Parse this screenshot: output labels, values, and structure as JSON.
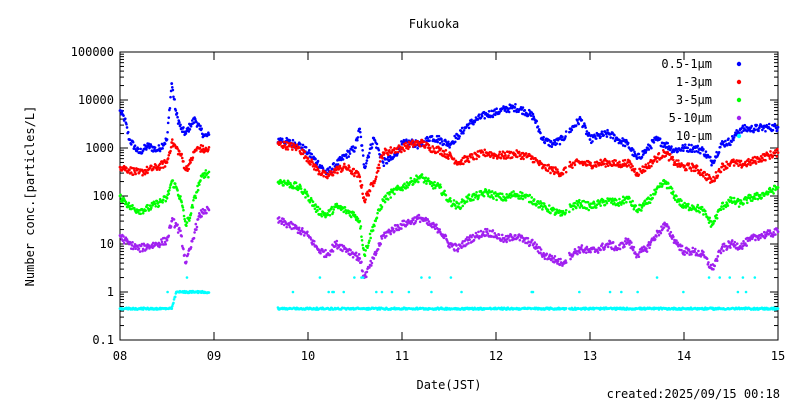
{
  "chart_data": {
    "type": "scatter",
    "title": "Fukuoka",
    "xlabel": "Date(JST)",
    "ylabel": "Number conc.[particles/L]",
    "footer": "created:2025/09/15 00:18",
    "y_scale": "log",
    "ylim": [
      0.1,
      100000
    ],
    "xlim": [
      8,
      15
    ],
    "x_ticks": [
      "08",
      "09",
      "10",
      "11",
      "12",
      "13",
      "14",
      "15"
    ],
    "y_ticks": [
      "0.1",
      "1",
      "10",
      "100",
      "1000",
      "10000",
      "100000"
    ],
    "grid": false,
    "legend_position": "top-right",
    "gaps": [
      [
        8.95,
        9.68
      ],
      [
        12.75,
        12.78
      ]
    ],
    "series": [
      {
        "name": "0.5-1μm",
        "color": "#0000ff",
        "x": [
          8.0,
          8.05,
          8.1,
          8.2,
          8.3,
          8.4,
          8.5,
          8.55,
          8.6,
          8.65,
          8.7,
          8.75,
          8.8,
          8.85,
          8.9,
          9.7,
          9.8,
          9.9,
          10.0,
          10.1,
          10.2,
          10.3,
          10.4,
          10.5,
          10.55,
          10.6,
          10.7,
          10.8,
          10.9,
          11.0,
          11.1,
          11.2,
          11.3,
          11.4,
          11.5,
          11.6,
          11.7,
          11.8,
          11.9,
          12.0,
          12.1,
          12.2,
          12.3,
          12.4,
          12.5,
          12.6,
          12.7,
          12.8,
          12.9,
          13.0,
          13.1,
          13.2,
          13.3,
          13.4,
          13.5,
          13.6,
          13.7,
          13.8,
          13.9,
          14.0,
          14.1,
          14.2,
          14.3,
          14.4,
          14.5,
          14.6,
          14.7,
          14.8,
          14.9,
          15.0
        ],
        "y": [
          6000,
          4000,
          1500,
          800,
          1100,
          900,
          1500,
          22000,
          5000,
          2500,
          2000,
          3000,
          4000,
          2500,
          1800,
          1500,
          1300,
          1200,
          800,
          500,
          300,
          450,
          700,
          1000,
          2500,
          400,
          1600,
          500,
          600,
          1200,
          1300,
          1100,
          1700,
          1500,
          1200,
          1800,
          3000,
          4000,
          5000,
          5500,
          6500,
          7000,
          6000,
          4500,
          1500,
          1200,
          1500,
          2500,
          4000,
          1500,
          1800,
          2000,
          1500,
          1200,
          600,
          900,
          1500,
          1200,
          900,
          1000,
          1000,
          900,
          500,
          1200,
          1400,
          2500,
          2500,
          2600,
          2700,
          2700
        ]
      },
      {
        "name": "1-3μm",
        "color": "#ff0000",
        "x": [
          8.0,
          8.05,
          8.1,
          8.2,
          8.3,
          8.4,
          8.5,
          8.55,
          8.6,
          8.65,
          8.7,
          8.75,
          8.8,
          8.85,
          8.9,
          9.7,
          9.8,
          9.9,
          10.0,
          10.1,
          10.2,
          10.3,
          10.4,
          10.5,
          10.55,
          10.6,
          10.7,
          10.8,
          10.9,
          11.0,
          11.1,
          11.2,
          11.3,
          11.4,
          11.5,
          11.6,
          11.7,
          11.8,
          11.9,
          12.0,
          12.1,
          12.2,
          12.3,
          12.4,
          12.5,
          12.6,
          12.7,
          12.8,
          12.9,
          13.0,
          13.1,
          13.2,
          13.3,
          13.4,
          13.5,
          13.6,
          13.7,
          13.8,
          13.9,
          14.0,
          14.1,
          14.2,
          14.3,
          14.4,
          14.5,
          14.6,
          14.7,
          14.8,
          14.9,
          15.0
        ],
        "y": [
          400,
          380,
          350,
          300,
          350,
          400,
          500,
          1300,
          1000,
          700,
          350,
          500,
          900,
          1000,
          900,
          1200,
          1100,
          1000,
          600,
          350,
          250,
          350,
          400,
          300,
          250,
          80,
          200,
          800,
          900,
          1000,
          1200,
          1300,
          1000,
          900,
          700,
          500,
          600,
          700,
          800,
          700,
          700,
          750,
          700,
          600,
          400,
          350,
          300,
          450,
          500,
          450,
          480,
          500,
          450,
          500,
          300,
          400,
          600,
          800,
          500,
          400,
          400,
          300,
          200,
          400,
          500,
          450,
          500,
          600,
          700,
          800
        ]
      },
      {
        "name": "3-5μm",
        "color": "#00ff00",
        "x": [
          8.0,
          8.05,
          8.1,
          8.2,
          8.3,
          8.4,
          8.5,
          8.55,
          8.6,
          8.65,
          8.7,
          8.75,
          8.8,
          8.85,
          8.9,
          9.7,
          9.8,
          9.9,
          10.0,
          10.1,
          10.2,
          10.3,
          10.4,
          10.5,
          10.55,
          10.6,
          10.7,
          10.8,
          10.9,
          11.0,
          11.1,
          11.2,
          11.3,
          11.4,
          11.5,
          11.6,
          11.7,
          11.8,
          11.9,
          12.0,
          12.1,
          12.2,
          12.3,
          12.4,
          12.5,
          12.6,
          12.7,
          12.8,
          12.9,
          13.0,
          13.1,
          13.2,
          13.3,
          13.4,
          13.5,
          13.6,
          13.7,
          13.8,
          13.9,
          14.0,
          14.1,
          14.2,
          14.3,
          14.4,
          14.5,
          14.6,
          14.7,
          14.8,
          14.9,
          15.0
        ],
        "y": [
          100,
          80,
          60,
          50,
          55,
          70,
          90,
          200,
          150,
          80,
          25,
          40,
          100,
          200,
          300,
          200,
          180,
          150,
          100,
          50,
          40,
          60,
          50,
          40,
          30,
          6,
          25,
          80,
          120,
          150,
          200,
          250,
          180,
          150,
          80,
          60,
          90,
          100,
          120,
          100,
          90,
          110,
          100,
          80,
          60,
          50,
          40,
          60,
          70,
          60,
          70,
          80,
          70,
          90,
          50,
          70,
          120,
          200,
          100,
          60,
          60,
          50,
          25,
          60,
          80,
          70,
          90,
          100,
          120,
          150
        ]
      },
      {
        "name": "5-10μm",
        "color": "#a020f0",
        "x": [
          8.0,
          8.05,
          8.1,
          8.2,
          8.3,
          8.4,
          8.5,
          8.55,
          8.6,
          8.65,
          8.7,
          8.75,
          8.8,
          8.85,
          8.9,
          9.7,
          9.8,
          9.9,
          10.0,
          10.1,
          10.2,
          10.3,
          10.4,
          10.5,
          10.55,
          10.6,
          10.7,
          10.8,
          10.9,
          11.0,
          11.1,
          11.2,
          11.3,
          11.4,
          11.5,
          11.6,
          11.7,
          11.8,
          11.9,
          12.0,
          12.1,
          12.2,
          12.3,
          12.4,
          12.5,
          12.6,
          12.7,
          12.8,
          12.9,
          13.0,
          13.1,
          13.2,
          13.3,
          13.4,
          13.5,
          13.6,
          13.7,
          13.8,
          13.9,
          14.0,
          14.1,
          14.2,
          14.3,
          14.4,
          14.5,
          14.6,
          14.7,
          14.8,
          14.9,
          15.0
        ],
        "y": [
          15,
          12,
          10,
          8,
          9,
          10,
          12,
          30,
          25,
          15,
          4,
          8,
          20,
          40,
          50,
          30,
          25,
          20,
          15,
          8,
          6,
          10,
          8,
          6,
          5,
          2,
          5,
          15,
          20,
          25,
          30,
          35,
          25,
          20,
          10,
          8,
          12,
          15,
          18,
          15,
          12,
          15,
          12,
          10,
          6,
          5,
          4,
          6,
          8,
          7,
          8,
          10,
          8,
          12,
          6,
          8,
          15,
          25,
          12,
          7,
          7,
          6,
          3,
          8,
          10,
          9,
          12,
          15,
          16,
          18
        ]
      },
      {
        "name": "10-μm",
        "color": "#00ffff",
        "x": [
          8.0,
          8.05,
          8.1,
          8.2,
          8.3,
          8.4,
          8.5,
          8.55,
          8.6,
          8.65,
          8.7,
          8.75,
          8.8,
          8.85,
          8.9,
          9.7,
          9.8,
          9.9,
          10.0,
          10.1,
          10.2,
          10.3,
          10.4,
          10.5,
          10.55,
          10.6,
          10.7,
          10.8,
          10.9,
          11.0,
          11.1,
          11.2,
          11.3,
          11.4,
          11.5,
          11.6,
          11.7,
          11.8,
          11.9,
          12.0,
          12.1,
          12.2,
          12.3,
          12.4,
          12.5,
          12.6,
          12.7,
          12.8,
          12.9,
          13.0,
          13.1,
          13.2,
          13.3,
          13.4,
          13.5,
          13.6,
          13.7,
          13.8,
          13.9,
          14.0,
          14.1,
          14.2,
          14.3,
          14.4,
          14.5,
          14.6,
          14.7,
          14.8,
          14.9,
          15.0
        ],
        "y": [
          0.45,
          0.45,
          0.45,
          0.45,
          0.45,
          0.45,
          0.45,
          0.45,
          1.0,
          1.0,
          1.0,
          1.0,
          1.0,
          1.0,
          1.0,
          0.45,
          0.45,
          0.45,
          0.45,
          0.45,
          0.45,
          0.45,
          0.45,
          0.45,
          0.45,
          0.45,
          0.45,
          0.45,
          0.45,
          0.45,
          0.45,
          0.45,
          0.45,
          0.45,
          0.45,
          0.45,
          0.45,
          0.45,
          0.45,
          0.45,
          0.45,
          0.45,
          0.45,
          0.45,
          0.45,
          0.45,
          0.45,
          0.45,
          0.45,
          0.45,
          0.45,
          0.45,
          0.45,
          0.45,
          0.45,
          0.45,
          0.45,
          0.45,
          0.45,
          0.45,
          0.45,
          0.45,
          0.45,
          0.45,
          0.45,
          0.45,
          0.45,
          0.45,
          0.45,
          0.45
        ]
      }
    ]
  }
}
